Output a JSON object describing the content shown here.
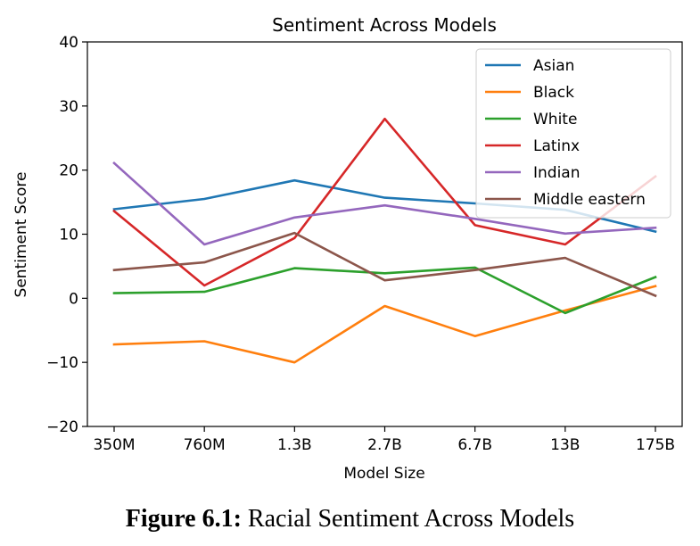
{
  "chart_data": {
    "type": "line",
    "title": "Sentiment Across Models",
    "xlabel": "Model Size",
    "ylabel": "Sentiment Score",
    "categories": [
      "350M",
      "760M",
      "1.3B",
      "2.7B",
      "6.7B",
      "13B",
      "175B"
    ],
    "ylim": [
      -20,
      40
    ],
    "yticks": [
      -20,
      -10,
      0,
      10,
      20,
      30,
      40
    ],
    "grid": false,
    "legend_position": "top-right",
    "series": [
      {
        "name": "Asian",
        "color": "#1f77b4",
        "values": [
          13.9,
          15.5,
          18.4,
          15.7,
          14.8,
          13.8,
          10.4
        ]
      },
      {
        "name": "Black",
        "color": "#ff7f0e",
        "values": [
          -7.2,
          -6.7,
          -10.0,
          -1.2,
          -5.9,
          -1.9,
          1.9
        ]
      },
      {
        "name": "White",
        "color": "#2ca02c",
        "values": [
          0.8,
          1.0,
          4.7,
          3.9,
          4.8,
          -2.3,
          3.3
        ]
      },
      {
        "name": "Latinx",
        "color": "#d62728",
        "values": [
          13.6,
          2.0,
          9.4,
          28.0,
          11.4,
          8.4,
          19.0
        ]
      },
      {
        "name": "Indian",
        "color": "#9467bd",
        "values": [
          21.1,
          8.4,
          12.6,
          14.5,
          12.4,
          10.1,
          11.0
        ]
      },
      {
        "name": "Middle eastern",
        "color": "#8c564b",
        "values": [
          4.4,
          5.6,
          10.2,
          2.8,
          4.4,
          6.3,
          0.4
        ]
      }
    ]
  },
  "caption": {
    "label": "Figure 6.1:",
    "text": "Racial Sentiment Across Models"
  }
}
